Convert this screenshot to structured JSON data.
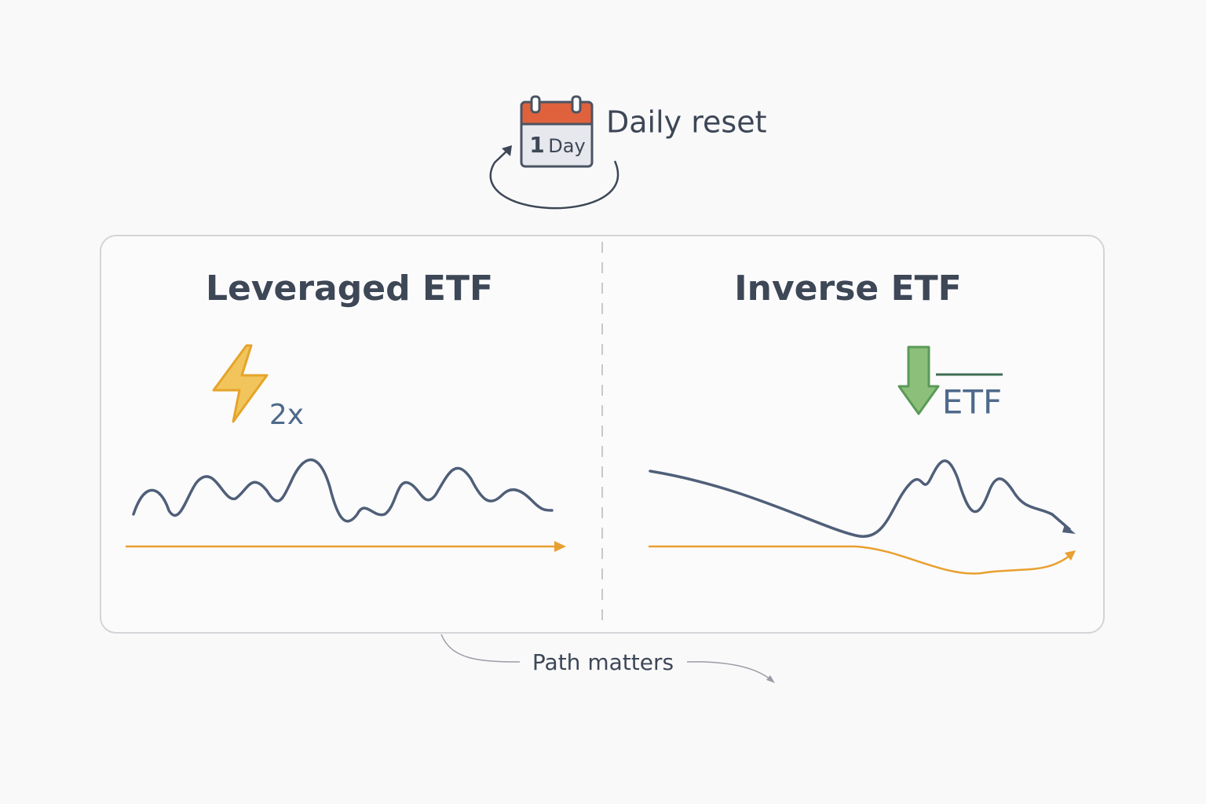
{
  "calendar": {
    "number": "1",
    "label": "Day"
  },
  "reset_label": "Daily reset",
  "panels": [
    {
      "title": "Leveraged ETF",
      "badge": "2x"
    },
    {
      "title": "Inverse ETF",
      "badge": "ETF"
    }
  ],
  "footer": "Path matters"
}
